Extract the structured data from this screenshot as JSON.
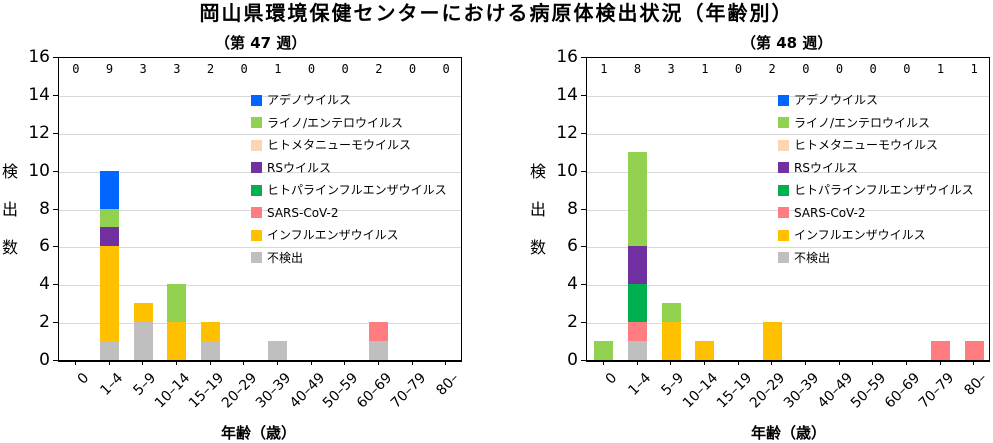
{
  "main_title": "岡山県環境保健センターにおける病原体検出状況（年齢別）",
  "legend": [
    {
      "name": "アデノウイルス",
      "color": "#0066ff"
    },
    {
      "name": "ライノ/エンテロウイルス",
      "color": "#92d050"
    },
    {
      "name": "ヒトメタニューモウイルス",
      "color": "#fcd5b5"
    },
    {
      "name": "RSウイルス",
      "color": "#7030a0"
    },
    {
      "name": "ヒトパラインフルエンザウイルス",
      "color": "#00b050"
    },
    {
      "name": "SARS-CoV-2",
      "color": "#ff7c80"
    },
    {
      "name": "インフルエンザウイルス",
      "color": "#ffc000"
    },
    {
      "name": "不検出",
      "color": "#bfbfbf"
    }
  ],
  "ylabel": "検出数",
  "xlabel": "年齢（歳）",
  "chart_data": [
    {
      "type": "bar",
      "stacked": true,
      "title": "（第 47 週）",
      "xlabel": "年齢（歳）",
      "ylabel": "検出数",
      "ylim": [
        0,
        16
      ],
      "yticks": [
        0,
        2,
        4,
        6,
        8,
        10,
        12,
        14,
        16
      ],
      "grid": true,
      "legend_position": "upper right",
      "categories": [
        "0",
        "1–4",
        "5–9",
        "10–14",
        "15–19",
        "20–29",
        "30–39",
        "40–49",
        "50–59",
        "60–69",
        "70–79",
        "80–"
      ],
      "sample_counts": [
        0,
        9,
        3,
        3,
        2,
        0,
        1,
        0,
        0,
        2,
        0,
        0
      ],
      "series": [
        {
          "name": "不検出",
          "values": [
            0,
            1,
            2,
            0,
            1,
            0,
            1,
            0,
            0,
            1,
            0,
            0
          ]
        },
        {
          "name": "インフルエンザウイルス",
          "values": [
            0,
            5,
            1,
            2,
            1,
            0,
            0,
            0,
            0,
            0,
            0,
            0
          ]
        },
        {
          "name": "SARS-CoV-2",
          "values": [
            0,
            0,
            0,
            0,
            0,
            0,
            0,
            0,
            0,
            1,
            0,
            0
          ]
        },
        {
          "name": "ヒトパラインフルエンザウイルス",
          "values": [
            0,
            0,
            0,
            0,
            0,
            0,
            0,
            0,
            0,
            0,
            0,
            0
          ]
        },
        {
          "name": "RSウイルス",
          "values": [
            0,
            1,
            0,
            0,
            0,
            0,
            0,
            0,
            0,
            0,
            0,
            0
          ]
        },
        {
          "name": "ヒトメタニューモウイルス",
          "values": [
            0,
            0,
            0,
            0,
            0,
            0,
            0,
            0,
            0,
            0,
            0,
            0
          ]
        },
        {
          "name": "ライノ/エンテロウイルス",
          "values": [
            0,
            1,
            0,
            2,
            0,
            0,
            0,
            0,
            0,
            0,
            0,
            0
          ]
        },
        {
          "name": "アデノウイルス",
          "values": [
            0,
            2,
            0,
            0,
            0,
            0,
            0,
            0,
            0,
            0,
            0,
            0
          ]
        }
      ]
    },
    {
      "type": "bar",
      "stacked": true,
      "title": "（第 48 週）",
      "xlabel": "年齢（歳）",
      "ylabel": "検出数",
      "ylim": [
        0,
        16
      ],
      "yticks": [
        0,
        2,
        4,
        6,
        8,
        10,
        12,
        14,
        16
      ],
      "grid": true,
      "legend_position": "upper right",
      "categories": [
        "0",
        "1–4",
        "5–9",
        "10–14",
        "15–19",
        "20–29",
        "30–39",
        "40–49",
        "50–59",
        "60–69",
        "70–79",
        "80–"
      ],
      "sample_counts": [
        1,
        8,
        3,
        1,
        0,
        2,
        0,
        0,
        0,
        0,
        1,
        1
      ],
      "series": [
        {
          "name": "不検出",
          "values": [
            0,
            1,
            0,
            0,
            0,
            0,
            0,
            0,
            0,
            0,
            0,
            0
          ]
        },
        {
          "name": "インフルエンザウイルス",
          "values": [
            0,
            0,
            2,
            1,
            0,
            2,
            0,
            0,
            0,
            0,
            0,
            0
          ]
        },
        {
          "name": "SARS-CoV-2",
          "values": [
            0,
            1,
            0,
            0,
            0,
            0,
            0,
            0,
            0,
            0,
            1,
            1
          ]
        },
        {
          "name": "ヒトパラインフルエンザウイルス",
          "values": [
            0,
            2,
            0,
            0,
            0,
            0,
            0,
            0,
            0,
            0,
            0,
            0
          ]
        },
        {
          "name": "RSウイルス",
          "values": [
            0,
            2,
            0,
            0,
            0,
            0,
            0,
            0,
            0,
            0,
            0,
            0
          ]
        },
        {
          "name": "ヒトメタニューモウイルス",
          "values": [
            0,
            0,
            0,
            0,
            0,
            0,
            0,
            0,
            0,
            0,
            0,
            0
          ]
        },
        {
          "name": "ライノ/エンテロウイルス",
          "values": [
            1,
            5,
            1,
            0,
            0,
            0,
            0,
            0,
            0,
            0,
            0,
            0
          ]
        },
        {
          "name": "アデノウイルス",
          "values": [
            0,
            0,
            0,
            0,
            0,
            0,
            0,
            0,
            0,
            0,
            0,
            0
          ]
        }
      ]
    }
  ]
}
